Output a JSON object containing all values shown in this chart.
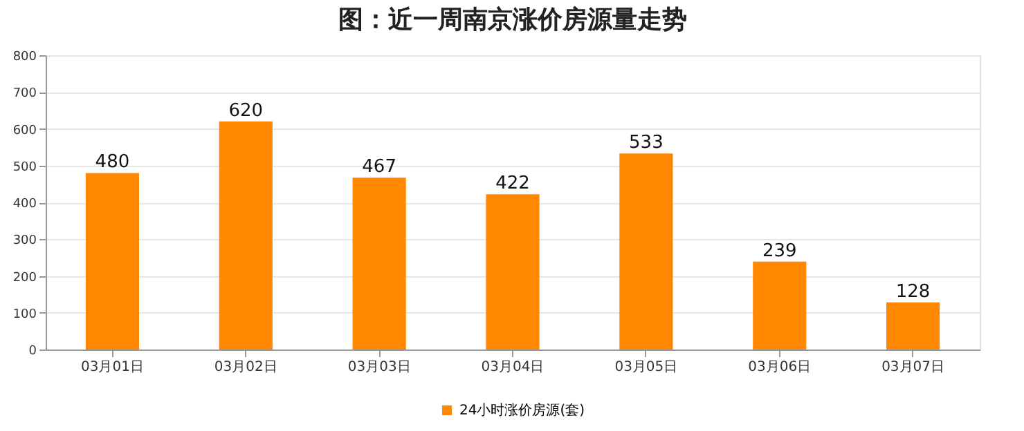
{
  "chart_data": {
    "type": "bar",
    "title": "图：近一周南京涨价房源量走势",
    "categories": [
      "03月01日",
      "03月02日",
      "03月03日",
      "03月04日",
      "03月05日",
      "03月06日",
      "03月07日"
    ],
    "series": [
      {
        "name": "24小时涨价房源(套)",
        "color": "#ff8800",
        "values": [
          480,
          620,
          467,
          422,
          533,
          239,
          128
        ]
      }
    ],
    "ylim": [
      0,
      800
    ],
    "yticks": [
      0,
      100,
      200,
      300,
      400,
      500,
      600,
      700,
      800
    ],
    "grid": "y",
    "legend": "bottom",
    "data_labels": true
  }
}
